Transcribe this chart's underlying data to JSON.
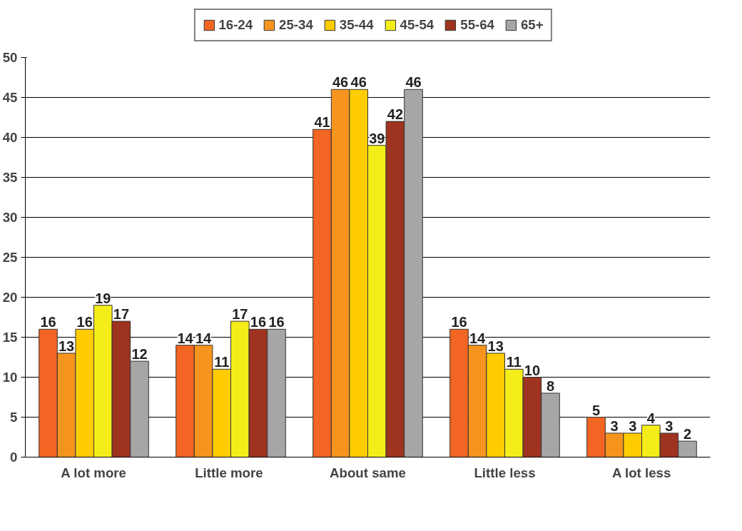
{
  "chart_data": {
    "type": "bar",
    "categories": [
      "A lot more",
      "Little  more",
      "About same",
      "Little less",
      "A lot less"
    ],
    "series": [
      {
        "name": "16-24",
        "color": "#f26522",
        "values": [
          16,
          14,
          41,
          16,
          5
        ]
      },
      {
        "name": "25-34",
        "color": "#f7941d",
        "values": [
          13,
          14,
          46,
          14,
          3
        ]
      },
      {
        "name": "35-44",
        "color": "#ffcc00",
        "values": [
          16,
          11,
          46,
          13,
          3
        ]
      },
      {
        "name": "45-54",
        "color": "#f5ed1a",
        "values": [
          19,
          17,
          39,
          11,
          4
        ]
      },
      {
        "name": "55-64",
        "color": "#9e3320",
        "values": [
          17,
          16,
          42,
          10,
          3
        ]
      },
      {
        "name": "65+",
        "color": "#a6a6a6",
        "values": [
          12,
          16,
          46,
          8,
          2
        ]
      }
    ],
    "ylim": [
      0,
      50
    ],
    "yticks": [
      0,
      5,
      10,
      15,
      20,
      25,
      30,
      35,
      40,
      45,
      50
    ],
    "grid": "y",
    "legend": "top",
    "data_labels": true
  }
}
